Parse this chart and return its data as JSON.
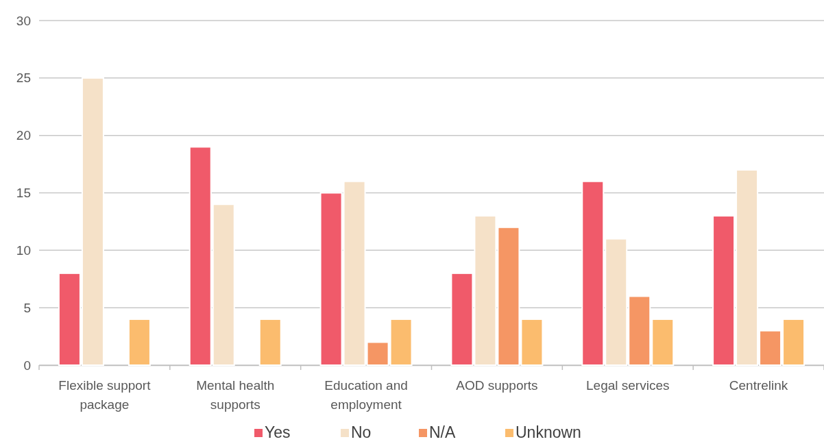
{
  "chart_data": {
    "type": "bar",
    "categories": [
      "Flexible support package",
      "Mental health supports",
      "Education and employment",
      "AOD supports",
      "Legal services",
      "Centrelink"
    ],
    "series": [
      {
        "name": "Yes",
        "color": "#f05a6a",
        "values": [
          8,
          19,
          15,
          8,
          16,
          13
        ]
      },
      {
        "name": "No",
        "color": "#f5e1c8",
        "values": [
          25,
          14,
          16,
          13,
          11,
          17
        ]
      },
      {
        "name": "N/A",
        "color": "#f59664",
        "values": [
          null,
          null,
          2,
          12,
          6,
          3
        ]
      },
      {
        "name": "Unknown",
        "color": "#fbbc6e",
        "values": [
          4,
          4,
          4,
          4,
          4,
          4
        ]
      }
    ],
    "ylim": [
      0,
      30
    ],
    "yticks": [
      0,
      5,
      10,
      15,
      20,
      25,
      30
    ],
    "grid": "y",
    "legend": "bottom"
  }
}
